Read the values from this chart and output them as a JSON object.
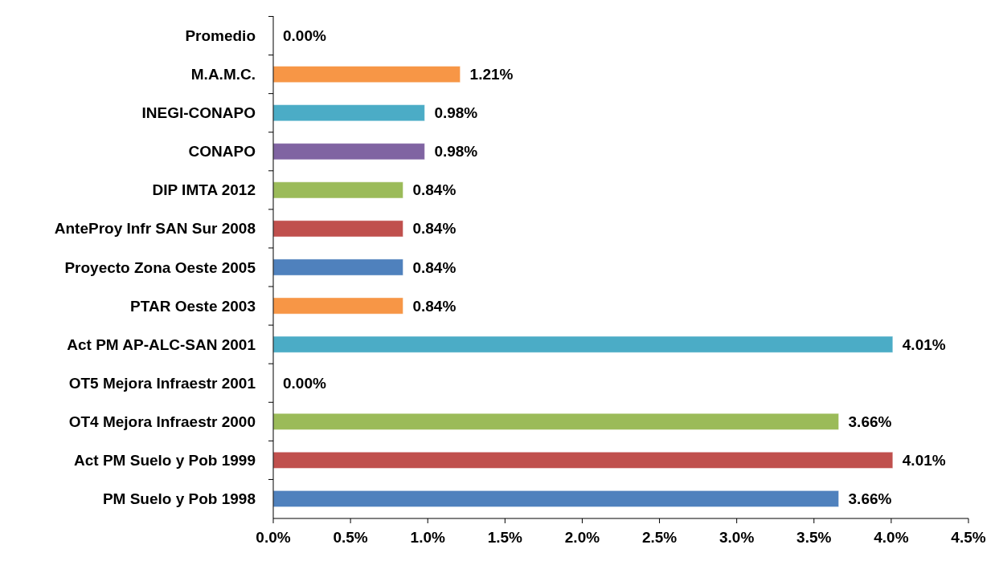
{
  "chart_data": {
    "type": "bar",
    "orientation": "horizontal",
    "categories": [
      "Promedio",
      "M.A.M.C.",
      "INEGI-CONAPO",
      "CONAPO",
      "DIP IMTA 2012",
      "AnteProy Infr SAN Sur 2008",
      "Proyecto Zona Oeste 2005",
      "PTAR Oeste 2003",
      "Act PM AP-ALC-SAN 2001",
      "OT5 Mejora Infraestr 2001",
      "OT4 Mejora Infraestr 2000",
      "Act PM Suelo y Pob 1999",
      "PM Suelo y Pob 1998"
    ],
    "values": [
      0,
      1.21,
      0.98,
      0.98,
      0.84,
      0.84,
      0.84,
      0.84,
      4.01,
      0,
      3.66,
      4.01,
      3.66
    ],
    "value_labels": [
      "0.00%",
      "1.21%",
      "0.98%",
      "0.98%",
      "0.84%",
      "0.84%",
      "0.84%",
      "0.84%",
      "4.01%",
      "0.00%",
      "3.66%",
      "4.01%",
      "3.66%"
    ],
    "colors": [
      "#4f81bd",
      "#f79646",
      "#4bacc6",
      "#8064a2",
      "#9bbb59",
      "#c0504d",
      "#4f81bd",
      "#f79646",
      "#4bacc6",
      "#8064a2",
      "#9bbb59",
      "#c0504d",
      "#4f81bd"
    ],
    "xlim": [
      0,
      4.5
    ],
    "xticks": [
      {
        "value": 0,
        "label": "0.0%"
      },
      {
        "value": 0.5,
        "label": "0.5%"
      },
      {
        "value": 1,
        "label": "1.0%"
      },
      {
        "value": 1.5,
        "label": "1.5%"
      },
      {
        "value": 2,
        "label": "2.0%"
      },
      {
        "value": 2.5,
        "label": "2.5%"
      },
      {
        "value": 3,
        "label": "3.0%"
      },
      {
        "value": 3.5,
        "label": "3.5%"
      },
      {
        "value": 4,
        "label": "4.0%"
      },
      {
        "value": 4.5,
        "label": "4.5%"
      }
    ],
    "grid": false
  }
}
